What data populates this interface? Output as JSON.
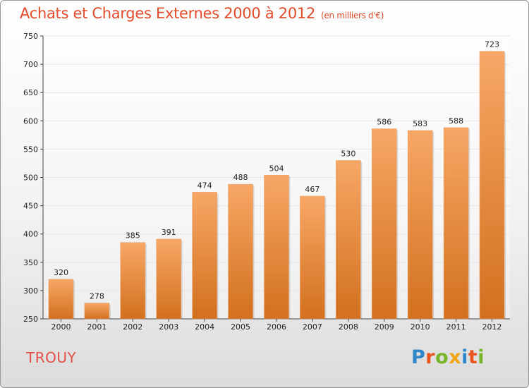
{
  "header": {
    "title": "Achats et Charges Externes 2000 à 2012",
    "subtitle": "(en milliers d'€)"
  },
  "commune": "TROUY",
  "logo": {
    "text": "Proxiti"
  },
  "colors": {
    "bar_top": "#f7a766",
    "bar_bottom": "#d2701e",
    "title": "#e24b2c",
    "grid": "#e8e8e8"
  },
  "chart_data": {
    "type": "bar",
    "title": "Achats et Charges Externes 2000 à 2012",
    "subtitle": "(en milliers d'€)",
    "categories": [
      "2000",
      "2001",
      "2002",
      "2003",
      "2004",
      "2005",
      "2006",
      "2007",
      "2008",
      "2009",
      "2010",
      "2011",
      "2012"
    ],
    "values": [
      320,
      278,
      385,
      391,
      474,
      488,
      504,
      467,
      530,
      586,
      583,
      588,
      723
    ],
    "ylim": [
      250,
      750
    ],
    "yticks": [
      250,
      300,
      350,
      400,
      450,
      500,
      550,
      600,
      650,
      700,
      750
    ],
    "grid": true
  }
}
